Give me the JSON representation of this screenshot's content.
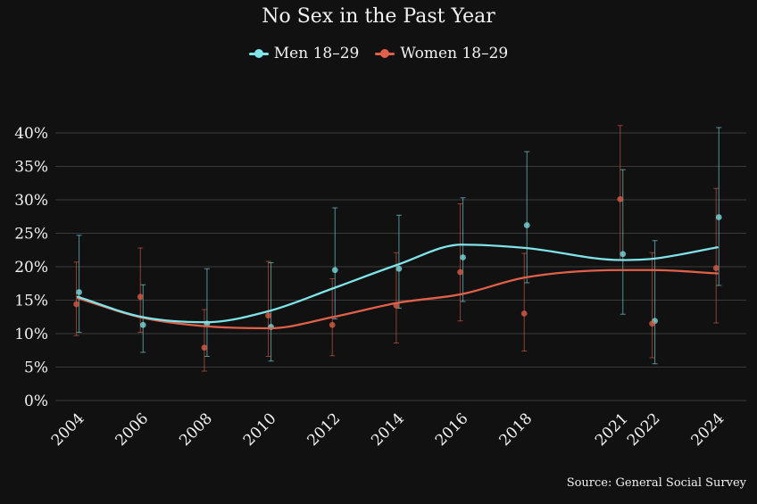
{
  "colors": {
    "background": "#111111",
    "men": "#7fe3e8",
    "women": "#e0604a",
    "grid": "#3a3a3a",
    "text": "#f2f2f2"
  },
  "chart_data": {
    "type": "line",
    "title": "No Sex in the Past Year",
    "x": [
      "2004",
      "2006",
      "2008",
      "2010",
      "2012",
      "2014",
      "2016",
      "2018",
      "2021",
      "2022",
      "2024"
    ],
    "ylim": [
      0,
      40
    ],
    "yticks": [
      "0%",
      "5%",
      "10%",
      "15%",
      "20%",
      "25%",
      "30%",
      "35%",
      "40%"
    ],
    "grid": true,
    "legend": "top-center",
    "series": [
      {
        "name": "Men 18–29",
        "color": "#7fe3e8",
        "points": [
          16.2,
          11.3,
          11.5,
          11.0,
          19.5,
          19.7,
          21.4,
          26.2,
          21.9,
          11.9,
          27.4
        ],
        "ci_low": [
          10.2,
          7.2,
          6.6,
          5.9,
          12.2,
          13.8,
          14.8,
          17.6,
          12.9,
          5.5,
          17.2
        ],
        "ci_high": [
          24.7,
          17.3,
          19.7,
          20.6,
          28.8,
          27.7,
          30.3,
          37.2,
          34.5,
          23.9,
          40.8
        ],
        "trend": [
          15.5,
          12.5,
          11.7,
          13.4,
          16.8,
          20.3,
          23.3,
          22.8,
          21.0,
          21.2,
          22.9
        ]
      },
      {
        "name": "Women 18–29",
        "color": "#e0604a",
        "points": [
          14.4,
          15.5,
          7.9,
          12.7,
          11.3,
          14.2,
          19.2,
          13.0,
          30.1,
          11.5,
          19.8
        ],
        "ci_low": [
          9.7,
          10.2,
          4.4,
          6.6,
          6.7,
          8.6,
          11.9,
          7.4,
          21.0,
          6.4,
          11.6
        ],
        "ci_high": [
          20.7,
          22.8,
          13.6,
          20.8,
          18.2,
          22.1,
          29.4,
          22.0,
          41.1,
          22.1,
          31.7
        ],
        "trend": [
          15.3,
          12.4,
          11.1,
          10.8,
          12.5,
          14.6,
          15.9,
          18.4,
          19.5,
          19.5,
          19.0
        ]
      }
    ]
  },
  "source": "Source: General Social Survey"
}
